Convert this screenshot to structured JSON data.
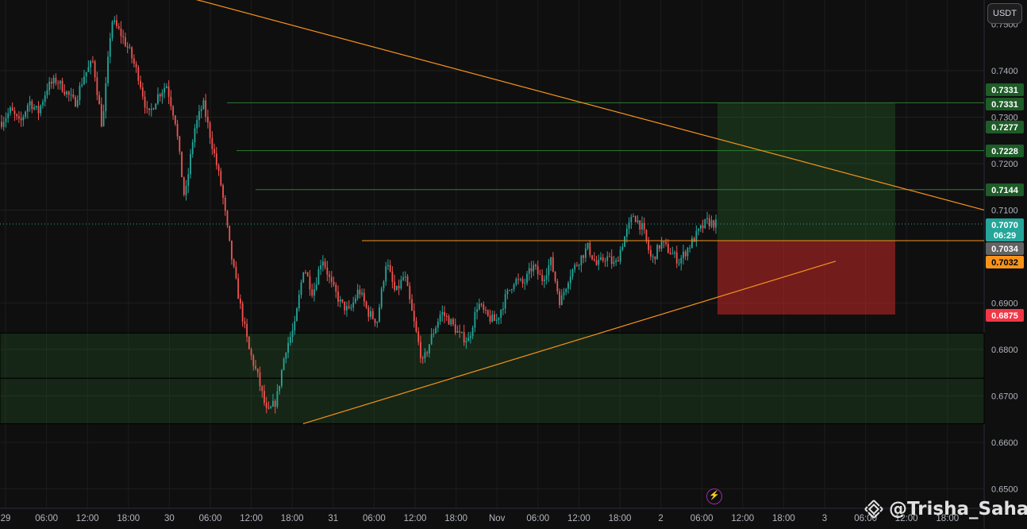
{
  "unit_button": "USDT",
  "watermark": {
    "handle": "@Trisha_Saha",
    "logo_icon": "binance-diamond-icon"
  },
  "replay_icon": "lightning-bolt-icon",
  "chart_data": {
    "type": "candlestick",
    "ylim": [
      0.6475,
      0.7555
    ],
    "y_ticks": [
      "0.7400",
      "0.7300",
      "0.7200",
      "0.7100",
      "0.6900",
      "0.6800",
      "0.6700",
      "0.6600",
      "0.6500"
    ],
    "x_ticks": [
      "29",
      "06:00",
      "12:00",
      "18:00",
      "30",
      "06:00",
      "12:00",
      "18:00",
      "31",
      "06:00",
      "12:00",
      "18:00",
      "Nov",
      "06:00",
      "12:00",
      "18:00",
      "2",
      "06:00",
      "12:00",
      "18:00",
      "3",
      "06:00",
      "12:00",
      "18:00"
    ],
    "price_path": [
      0.729,
      0.7315,
      0.7285,
      0.7335,
      0.731,
      0.7365,
      0.738,
      0.7355,
      0.733,
      0.739,
      0.742,
      0.7275,
      0.751,
      0.748,
      0.744,
      0.7385,
      0.73,
      0.7345,
      0.737,
      0.729,
      0.712,
      0.727,
      0.733,
      0.724,
      0.715,
      0.701,
      0.69,
      0.68,
      0.674,
      0.666,
      0.669,
      0.68,
      0.685,
      0.698,
      0.692,
      0.7,
      0.694,
      0.69,
      0.688,
      0.693,
      0.688,
      0.686,
      0.699,
      0.692,
      0.696,
      0.686,
      0.677,
      0.683,
      0.688,
      0.686,
      0.683,
      0.682,
      0.69,
      0.687,
      0.686,
      0.691,
      0.695,
      0.694,
      0.698,
      0.695,
      0.699,
      0.69,
      0.696,
      0.699,
      0.702,
      0.698,
      0.7,
      0.698,
      0.704,
      0.709,
      0.706,
      0.699,
      0.703,
      0.701,
      0.699,
      0.702,
      0.705,
      0.7075,
      0.707
    ],
    "last_price": {
      "value": "0.7070",
      "countdown": "06:29"
    },
    "price_badges": [
      {
        "value": "0.7331",
        "color": "#1e5c28"
      },
      {
        "value": "0.7331",
        "color": "#1e5c28"
      },
      {
        "value": "0.7277",
        "color": "#1e5c28"
      },
      {
        "value": "0.7228",
        "color": "#1e5c28"
      },
      {
        "value": "0.7144",
        "color": "#1e5c28"
      },
      {
        "value": "0.7034",
        "color": "#636363"
      },
      {
        "value": "0.7032",
        "color": "#f7931a"
      },
      {
        "value": "0.6875",
        "color": "#f23645"
      }
    ],
    "horizontal_levels": [
      0.7331,
      0.7228,
      0.7144
    ],
    "support_zone": {
      "from": 0.664,
      "to": 0.6835,
      "mid": 0.6738
    },
    "long_position": {
      "entry": 0.7034,
      "target": 0.7331,
      "stop": 0.6875
    },
    "trendlines": {
      "descending": {
        "from": 0.756,
        "to": 0.71
      },
      "ascending": {
        "from": 0.664,
        "to": 0.699
      },
      "resistance": 0.7034
    },
    "colors": {
      "up": "#26a69a",
      "down": "#ef5350",
      "trendline": "#f7931a",
      "profit": "#1e5c28",
      "loss": "#f23645"
    }
  }
}
